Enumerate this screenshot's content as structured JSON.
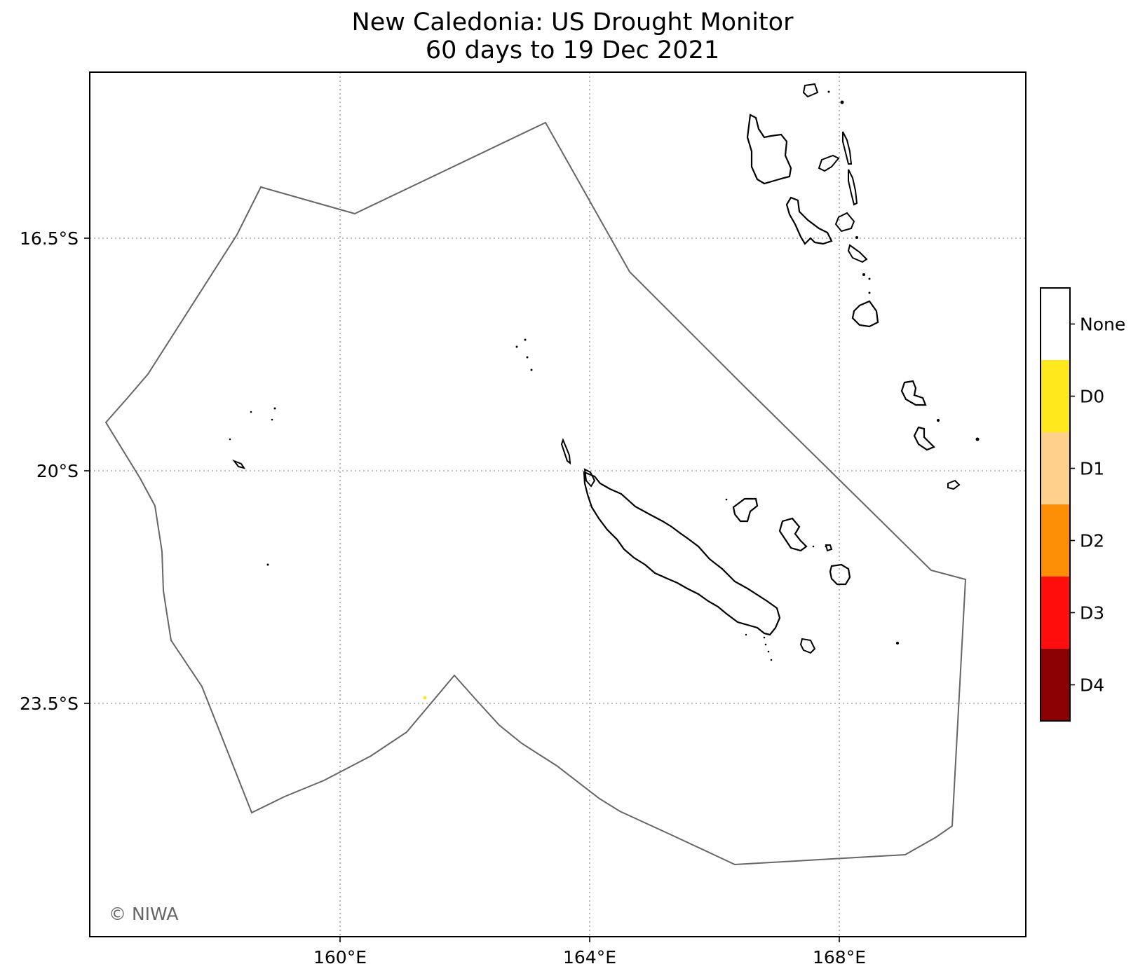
{
  "title": {
    "line1": "New Caledonia: US Drought Monitor",
    "line2": "60 days to 19 Dec 2021"
  },
  "axes": {
    "x_ticks": [
      "160°E",
      "164°E",
      "168°E"
    ],
    "y_ticks": [
      "16.5°S",
      "20°S",
      "23.5°S"
    ],
    "gridlines": true
  },
  "legend": {
    "placement": "right",
    "categories": [
      {
        "label": "None",
        "color": "#ffffff"
      },
      {
        "label": "D0",
        "color": "#ffe81c"
      },
      {
        "label": "D1",
        "color": "#ffd08c"
      },
      {
        "label": "D2",
        "color": "#fb8e04"
      },
      {
        "label": "D3",
        "color": "#ff0e0b"
      },
      {
        "label": "D4",
        "color": "#8b0103"
      }
    ]
  },
  "credit": "© NIWA",
  "colors": {
    "eez_outline": "#666666",
    "coastline": "#000000",
    "gridline": "#aaaaaa",
    "d0_marker": "#ffe81c"
  }
}
